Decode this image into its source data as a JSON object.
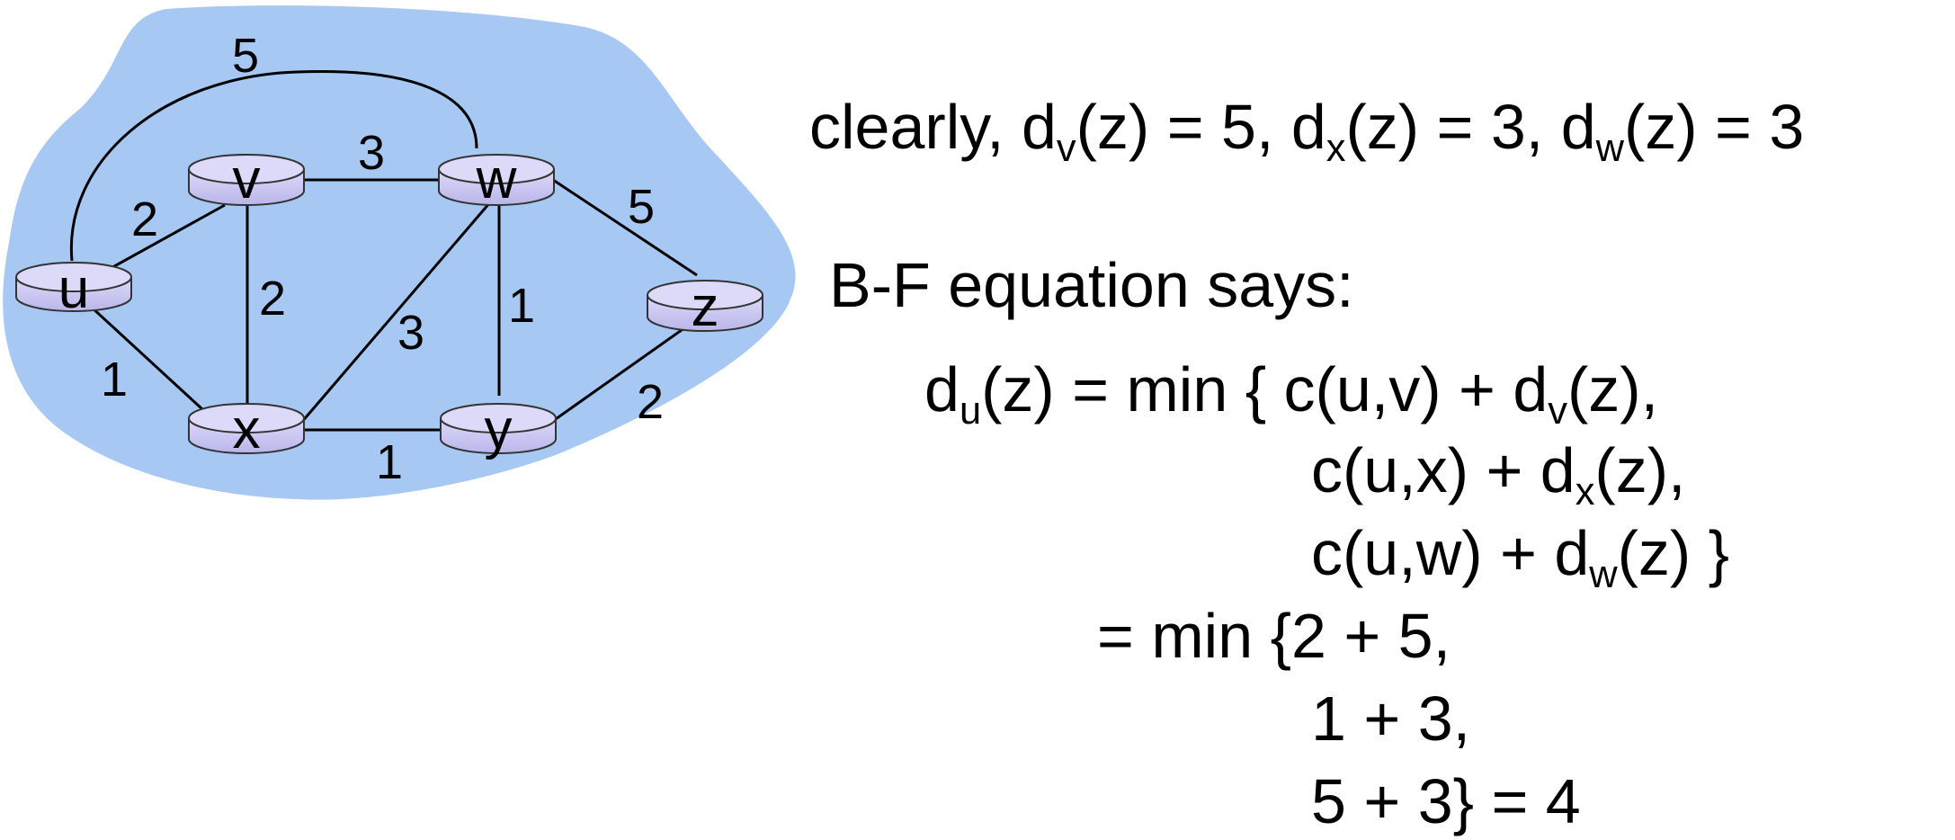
{
  "graph": {
    "nodes": {
      "u": "u",
      "v": "v",
      "w": "w",
      "x": "x",
      "y": "y",
      "z": "z"
    },
    "links": [
      {
        "ends": "u-w",
        "cost": "5"
      },
      {
        "ends": "u-v",
        "cost": "2"
      },
      {
        "ends": "u-x",
        "cost": "1"
      },
      {
        "ends": "v-w",
        "cost": "3"
      },
      {
        "ends": "v-x",
        "cost": "2"
      },
      {
        "ends": "x-w",
        "cost": "3"
      },
      {
        "ends": "w-y",
        "cost": "1"
      },
      {
        "ends": "w-z",
        "cost": "5"
      },
      {
        "ends": "x-y",
        "cost": "1"
      },
      {
        "ends": "y-z",
        "cost": "2"
      }
    ],
    "colors": {
      "cloud": "#a6c8f2",
      "router": "#c9c7f0"
    }
  },
  "text": {
    "clearly": {
      "prefix": "clearly, d",
      "sub1": "v",
      "part1": "(z) = 5, d",
      "sub2": "x",
      "part2": "(z) = 3, d",
      "sub3": "w",
      "part3": "(z) = 3"
    },
    "bf_heading": "B-F equation says:",
    "eq1": {
      "d": "d",
      "sub_u": "u",
      "rest": "(z) = min { c(u,v) + d",
      "sub_v": "v",
      "end": "(z),"
    },
    "eq2": {
      "start": "c(u,x) + d",
      "sub_x": "x",
      "end": "(z),"
    },
    "eq3": {
      "start": "c(u,w) + d",
      "sub_w": "w",
      "end": "(z) }"
    },
    "eq4": "= min {2 + 5,",
    "eq5": "1 + 3,",
    "eq6": "5 + 3}  = 4"
  }
}
